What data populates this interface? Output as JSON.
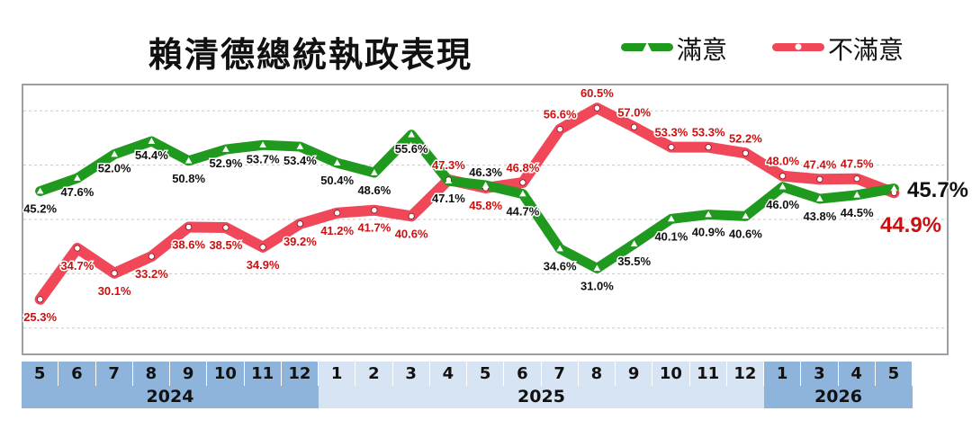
{
  "title": "賴清德總統執政表現",
  "colors": {
    "satisfied": "#1f9a1f",
    "dissatisfied": "#f04858",
    "dissatisfied_text": "#cc1010",
    "month_dark": "#8fb4dc",
    "month_light": "#d6e4f3",
    "year_dark": "#8fb4dc",
    "year_light": "#d6e4f3"
  },
  "legend": {
    "satisfied_label": "滿意",
    "dissatisfied_label": "不滿意",
    "satisfied_marker": "triangle-marker",
    "dissatisfied_marker": "circle-marker"
  },
  "chart_data": {
    "type": "line",
    "categories": [
      "5",
      "6",
      "7",
      "8",
      "9",
      "10",
      "11",
      "12",
      "1",
      "2",
      "3",
      "4",
      "5",
      "6",
      "7",
      "8",
      "9",
      "10",
      "11",
      "12",
      "1",
      "3",
      "4",
      "5"
    ],
    "years": [
      {
        "label": "2024",
        "span": 8,
        "shade": "dark"
      },
      {
        "label": "2025",
        "span": 12,
        "shade": "light"
      },
      {
        "label": "2026",
        "span": 4,
        "shade": "dark"
      }
    ],
    "ylim": [
      15,
      65
    ],
    "grid": true,
    "legend_position": "top-right",
    "series": [
      {
        "name": "滿意",
        "values": [
          45.2,
          47.6,
          52.0,
          54.4,
          50.8,
          52.9,
          53.7,
          53.4,
          50.4,
          48.6,
          55.6,
          47.1,
          46.3,
          44.7,
          34.6,
          31.0,
          35.5,
          40.1,
          40.9,
          40.6,
          46.0,
          43.8,
          44.5,
          45.7
        ],
        "labels": [
          "45.2%",
          "47.6%",
          "52.0%",
          "54.4%",
          "50.8%",
          "52.9%",
          "53.7%",
          "53.4%",
          "50.4%",
          "48.6%",
          "55.6%",
          "47.1%",
          "46.3%",
          "44.7%",
          "34.6%",
          "31.0%",
          "35.5%",
          "40.1%",
          "40.9%",
          "40.6%",
          "46.0%",
          "43.8%",
          "44.5%",
          "45.7%"
        ]
      },
      {
        "name": "不滿意",
        "values": [
          25.3,
          34.7,
          30.1,
          33.2,
          38.6,
          38.5,
          34.9,
          39.2,
          41.2,
          41.7,
          40.6,
          47.3,
          45.8,
          46.8,
          56.6,
          60.5,
          57.0,
          53.3,
          53.3,
          52.2,
          48.0,
          47.4,
          47.5,
          44.9
        ],
        "labels": [
          "25.3%",
          "34.7%",
          "30.1%",
          "33.2%",
          "38.6%",
          "38.5%",
          "34.9%",
          "39.2%",
          "41.2%",
          "41.7%",
          "40.6%",
          "47.3%",
          "45.8%",
          "46.8%",
          "56.6%",
          "60.5%",
          "57.0%",
          "53.3%",
          "53.3%",
          "52.2%",
          "48.0%",
          "47.4%",
          "47.5%",
          "44.9%"
        ]
      }
    ]
  }
}
